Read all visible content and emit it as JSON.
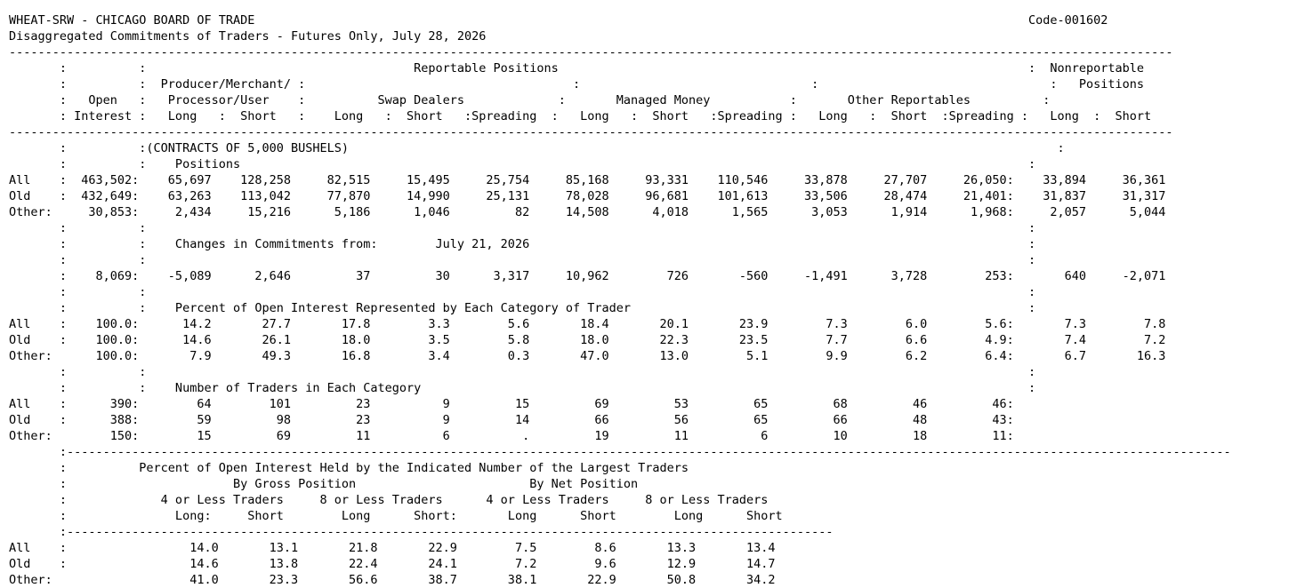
{
  "report": {
    "lines": [
      "WHEAT-SRW - CHICAGO BOARD OF TRADE                                                                                                           Code-001602",
      "Disaggregated Commitments of Traders - Futures Only, July 28, 2026",
      "-----------------------------------------------------------------------------------------------------------------------------------------------------------------",
      "       :          :                                     Reportable Positions                                                                 :  Nonreportable",
      "       :          :  Producer/Merchant/ :                                     :                                :                                :   Positions",
      "       :   Open   :   Processor/User    :          Swap Dealers             :       Managed Money           :       Other Reportables          :",
      "       : Interest :   Long   :  Short   :    Long   :  Short   :Spreading  :   Long   :  Short   :Spreading :   Long   :  Short  :Spreading :   Long  :  Short",
      "-----------------------------------------------------------------------------------------------------------------------------------------------------------------",
      "       :          :(CONTRACTS OF 5,000 BUSHELS)                                                                                                  :",
      "       :          :    Positions                                                                                                             :",
      "All    :  463,502:    65,697    128,258     82,515     15,495     25,754     85,168     93,331    110,546     33,878     27,707     26,050:    33,894     36,361",
      "Old    :  432,649:    63,263    113,042     77,870     14,990     25,131     78,028     96,681    101,613     33,506     28,474     21,401:    31,837     31,317",
      "Other:     30,853:     2,434     15,216      5,186      1,046         82     14,508      4,018      1,565      3,053      1,914      1,968:     2,057      5,044",
      "       :          :                                                                                                                          :",
      "       :          :    Changes in Commitments from:        July 21, 2026                                                                     :",
      "       :          :                                                                                                                          :",
      "       :    8,069:    -5,089      2,646         37         30      3,317     10,962        726       -560     -1,491      3,728        253:       640     -2,071",
      "       :          :                                                                                                                          :",
      "       :          :    Percent of Open Interest Represented by Each Category of Trader                                                       :",
      "All    :    100.0:      14.2       27.7       17.8        3.3        5.6       18.4       20.1       23.9        7.3        6.0        5.6:       7.3        7.8",
      "Old    :    100.0:      14.6       26.1       18.0        3.5        5.8       18.0       22.3       23.5        7.7        6.6        4.9:       7.4        7.2",
      "Other:      100.0:       7.9       49.3       16.8        3.4        0.3       47.0       13.0        5.1        9.9        6.2        6.4:       6.7       16.3",
      "       :          :                                                                                                                          :",
      "       :          :    Number of Traders in Each Category                                                                                    :",
      "All    :      390:        64        101         23          9         15         69         53         65         68         46         46:",
      "Old    :      388:        59         98         23          9         14         66         56         65         66         48         43:",
      "Other:        150:        15         69         11          6          .         19         11          6         10         18         11:",
      "       :-----------------------------------------------------------------------------------------------------------------------------------------------------------------",
      "       :          Percent of Open Interest Held by the Indicated Number of the Largest Traders",
      "       :                       By Gross Position                        By Net Position",
      "       :             4 or Less Traders     8 or Less Traders      4 or Less Traders     8 or Less Traders",
      "       :               Long:     Short        Long      Short:       Long      Short        Long      Short",
      "       :----------------------------------------------------------------------------------------------------------",
      "All    :                 14.0       13.1       21.8       22.9        7.5        8.6       13.3       13.4",
      "Old    :                 14.6       13.8       22.4       24.1        7.2        9.6       12.9       14.7",
      "Other:                   41.0       23.3       56.6       38.7       38.1       22.9       50.8       34.2"
    ]
  }
}
